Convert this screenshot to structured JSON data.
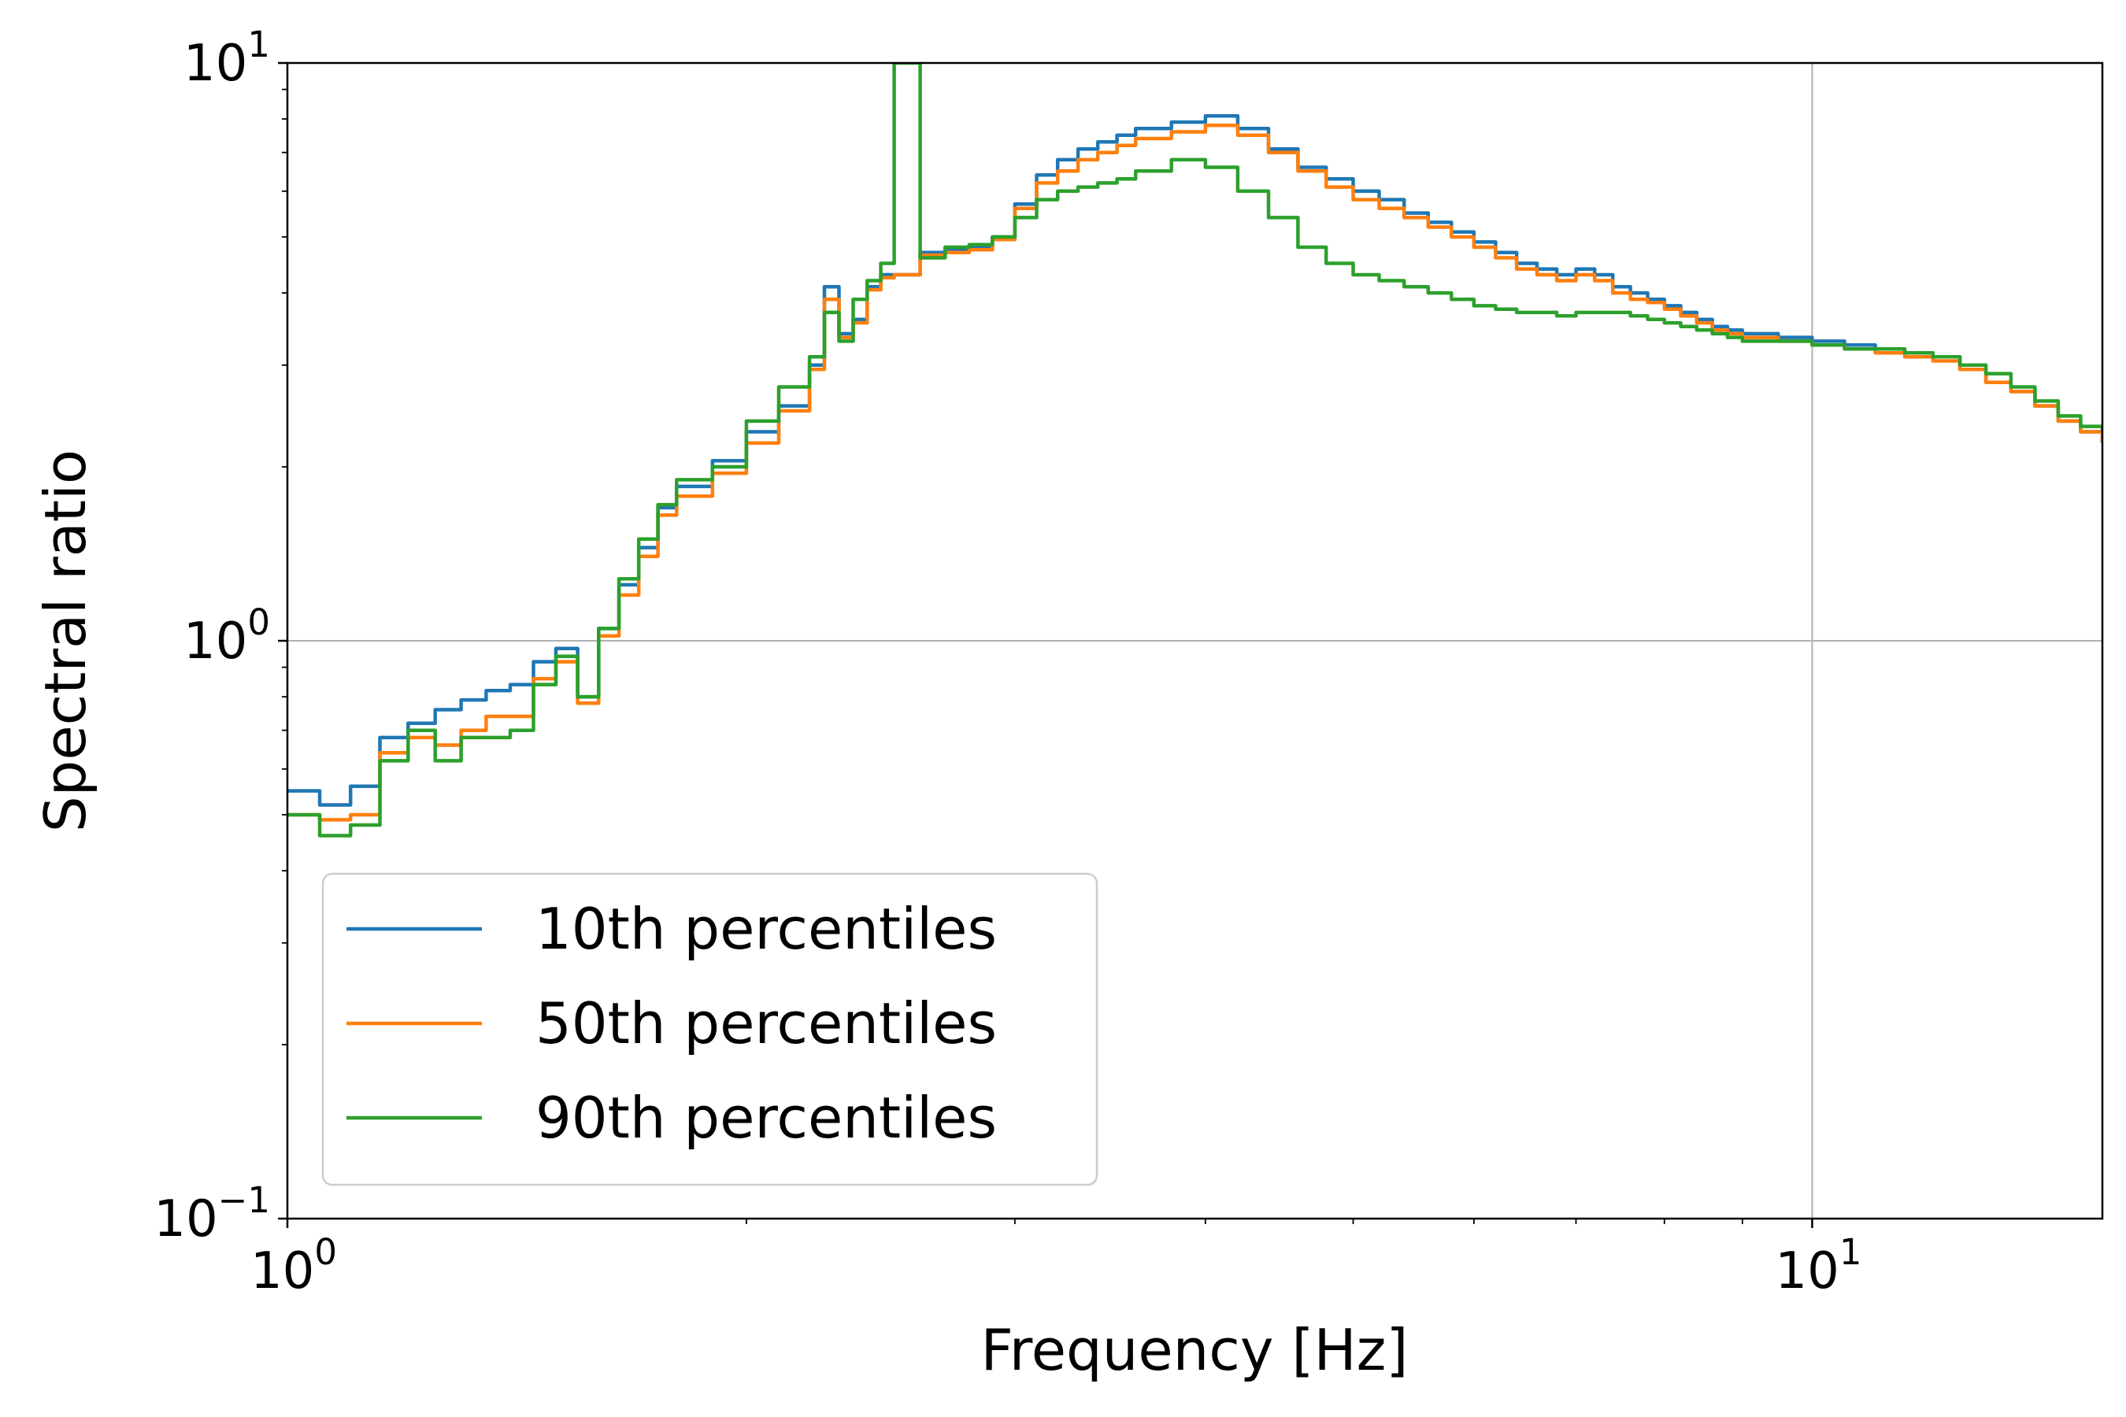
{
  "chart_data": {
    "type": "line",
    "title": "",
    "xlabel": "Frequency [Hz]",
    "ylabel": "Spectral ratio",
    "xscale": "log",
    "yscale": "log",
    "xlim": [
      1.0,
      15.5
    ],
    "ylim": [
      0.1,
      10
    ],
    "grid": true,
    "legend_position": "lower-left",
    "x_ticks": [
      {
        "base": "10",
        "exp": "0",
        "value": 1
      },
      {
        "base": "10",
        "exp": "1",
        "value": 10
      }
    ],
    "y_ticks": [
      {
        "base": "10",
        "exp": "−1",
        "value": 0.1
      },
      {
        "base": "10",
        "exp": "0",
        "value": 1
      },
      {
        "base": "10",
        "exp": "1",
        "value": 10
      }
    ],
    "series": [
      {
        "name": "10th percentiles",
        "color": "#1f77b4",
        "x": [
          1.0,
          1.05,
          1.1,
          1.15,
          1.2,
          1.25,
          1.3,
          1.35,
          1.4,
          1.45,
          1.5,
          1.55,
          1.6,
          1.65,
          1.7,
          1.75,
          1.8,
          1.9,
          2.0,
          2.1,
          2.2,
          2.25,
          2.3,
          2.35,
          2.4,
          2.45,
          2.5,
          2.6,
          2.7,
          2.8,
          2.9,
          3.0,
          3.1,
          3.2,
          3.3,
          3.4,
          3.5,
          3.6,
          3.8,
          4.0,
          4.2,
          4.4,
          4.6,
          4.8,
          5.0,
          5.2,
          5.4,
          5.6,
          5.8,
          6.0,
          6.2,
          6.4,
          6.6,
          6.8,
          7.0,
          7.2,
          7.4,
          7.6,
          7.8,
          8.0,
          8.2,
          8.4,
          8.6,
          8.8,
          9.0,
          9.5,
          10.0,
          10.5,
          11.0,
          11.5,
          12.0,
          12.5,
          13.0,
          13.5,
          14.0,
          14.5,
          15.0,
          15.5
        ],
        "values": [
          0.55,
          0.52,
          0.56,
          0.68,
          0.72,
          0.76,
          0.79,
          0.82,
          0.84,
          0.92,
          0.97,
          0.8,
          1.05,
          1.25,
          1.45,
          1.7,
          1.85,
          2.05,
          2.3,
          2.55,
          3.0,
          4.1,
          3.4,
          3.6,
          4.1,
          4.3,
          4.3,
          4.7,
          4.75,
          4.8,
          5.0,
          5.7,
          6.4,
          6.8,
          7.1,
          7.3,
          7.5,
          7.7,
          7.9,
          8.1,
          7.7,
          7.1,
          6.6,
          6.3,
          6.0,
          5.8,
          5.5,
          5.3,
          5.1,
          4.9,
          4.7,
          4.5,
          4.4,
          4.3,
          4.4,
          4.3,
          4.1,
          4.0,
          3.9,
          3.8,
          3.7,
          3.6,
          3.5,
          3.45,
          3.4,
          3.35,
          3.3,
          3.25,
          3.2,
          3.15,
          3.1,
          2.95,
          2.8,
          2.7,
          2.55,
          2.4,
          2.3,
          2.2
        ]
      },
      {
        "name": "50th percentiles",
        "color": "#ff7f0e",
        "x": [
          1.0,
          1.05,
          1.1,
          1.15,
          1.2,
          1.25,
          1.3,
          1.35,
          1.4,
          1.45,
          1.5,
          1.55,
          1.6,
          1.65,
          1.7,
          1.75,
          1.8,
          1.9,
          2.0,
          2.1,
          2.2,
          2.25,
          2.3,
          2.35,
          2.4,
          2.45,
          2.5,
          2.6,
          2.7,
          2.8,
          2.9,
          3.0,
          3.1,
          3.2,
          3.3,
          3.4,
          3.5,
          3.6,
          3.8,
          4.0,
          4.2,
          4.4,
          4.6,
          4.8,
          5.0,
          5.2,
          5.4,
          5.6,
          5.8,
          6.0,
          6.2,
          6.4,
          6.6,
          6.8,
          7.0,
          7.2,
          7.4,
          7.6,
          7.8,
          8.0,
          8.2,
          8.4,
          8.6,
          8.8,
          9.0,
          9.5,
          10.0,
          10.5,
          11.0,
          11.5,
          12.0,
          12.5,
          13.0,
          13.5,
          14.0,
          14.5,
          15.0,
          15.5
        ],
        "values": [
          0.5,
          0.49,
          0.5,
          0.64,
          0.68,
          0.66,
          0.7,
          0.74,
          0.74,
          0.86,
          0.92,
          0.78,
          1.02,
          1.2,
          1.4,
          1.65,
          1.78,
          1.95,
          2.2,
          2.5,
          2.95,
          3.9,
          3.35,
          3.55,
          4.05,
          4.25,
          4.3,
          4.65,
          4.7,
          4.75,
          4.95,
          5.6,
          6.2,
          6.5,
          6.8,
          7.0,
          7.2,
          7.4,
          7.6,
          7.8,
          7.5,
          7.0,
          6.5,
          6.1,
          5.8,
          5.6,
          5.4,
          5.2,
          5.0,
          4.8,
          4.6,
          4.4,
          4.3,
          4.2,
          4.3,
          4.2,
          4.0,
          3.9,
          3.85,
          3.75,
          3.65,
          3.55,
          3.45,
          3.4,
          3.35,
          3.3,
          3.25,
          3.2,
          3.15,
          3.1,
          3.05,
          2.95,
          2.8,
          2.7,
          2.55,
          2.4,
          2.3,
          2.2
        ]
      },
      {
        "name": "90th percentiles",
        "color": "#2ca02c",
        "x": [
          1.0,
          1.05,
          1.1,
          1.15,
          1.2,
          1.25,
          1.3,
          1.35,
          1.4,
          1.45,
          1.5,
          1.55,
          1.6,
          1.65,
          1.7,
          1.75,
          1.8,
          1.9,
          2.0,
          2.1,
          2.2,
          2.25,
          2.3,
          2.35,
          2.4,
          2.45,
          2.5,
          2.6,
          2.7,
          2.8,
          2.9,
          3.0,
          3.1,
          3.2,
          3.3,
          3.4,
          3.5,
          3.6,
          3.8,
          4.0,
          4.2,
          4.4,
          4.6,
          4.8,
          5.0,
          5.2,
          5.4,
          5.6,
          5.8,
          6.0,
          6.2,
          6.4,
          6.6,
          6.8,
          7.0,
          7.2,
          7.4,
          7.6,
          7.8,
          8.0,
          8.2,
          8.4,
          8.6,
          8.8,
          9.0,
          9.5,
          10.0,
          10.5,
          11.0,
          11.5,
          12.0,
          12.5,
          13.0,
          13.5,
          14.0,
          14.5,
          15.0,
          15.5
        ],
        "values": [
          0.5,
          0.46,
          0.48,
          0.62,
          0.7,
          0.62,
          0.68,
          0.68,
          0.7,
          0.84,
          0.94,
          0.8,
          1.05,
          1.28,
          1.5,
          1.72,
          1.9,
          2.0,
          2.4,
          2.75,
          3.1,
          3.7,
          3.3,
          3.9,
          4.2,
          4.5,
          10.0,
          4.6,
          4.8,
          4.85,
          5.0,
          5.4,
          5.8,
          6.0,
          6.1,
          6.2,
          6.3,
          6.5,
          6.8,
          6.6,
          6.0,
          5.4,
          4.8,
          4.5,
          4.3,
          4.2,
          4.1,
          4.0,
          3.9,
          3.8,
          3.75,
          3.7,
          3.7,
          3.65,
          3.7,
          3.7,
          3.7,
          3.65,
          3.6,
          3.55,
          3.5,
          3.45,
          3.4,
          3.35,
          3.3,
          3.3,
          3.25,
          3.2,
          3.2,
          3.15,
          3.1,
          3.0,
          2.9,
          2.75,
          2.6,
          2.45,
          2.35,
          2.3
        ]
      }
    ]
  }
}
